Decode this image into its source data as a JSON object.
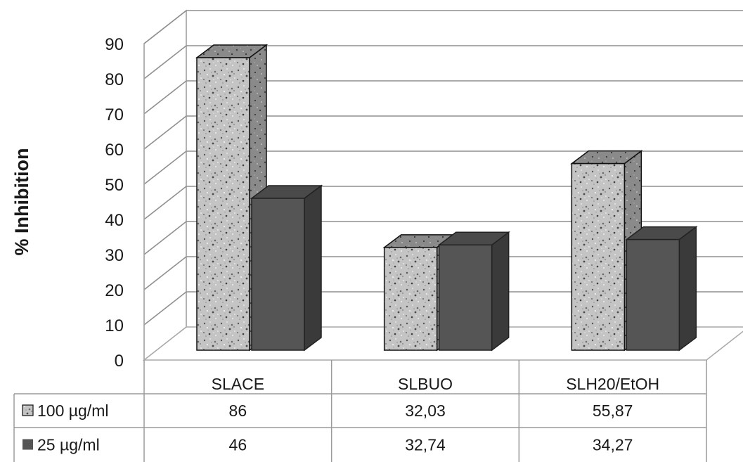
{
  "chart_data": {
    "type": "bar",
    "style": "3d-clustered-column-with-data-table",
    "ylabel": "% Inhibition",
    "xlabel": "",
    "ylim": [
      0,
      90
    ],
    "yticks": [
      0,
      10,
      20,
      30,
      40,
      50,
      60,
      70,
      80,
      90
    ],
    "grid": true,
    "categories": [
      "SLACE",
      "SLBUO",
      "SLH20/EtOH"
    ],
    "series": [
      {
        "name": "100 µg/ml",
        "values": [
          86,
          32.03,
          55.87
        ],
        "value_labels": [
          "86",
          "32,03",
          "55,87"
        ],
        "fill": "speckled-gray"
      },
      {
        "name": "25 µg/ml",
        "values": [
          46,
          32.74,
          34.27
        ],
        "value_labels": [
          "46",
          "32,74",
          "34,27"
        ],
        "fill": "#555555"
      }
    ],
    "legend": "data-table"
  }
}
